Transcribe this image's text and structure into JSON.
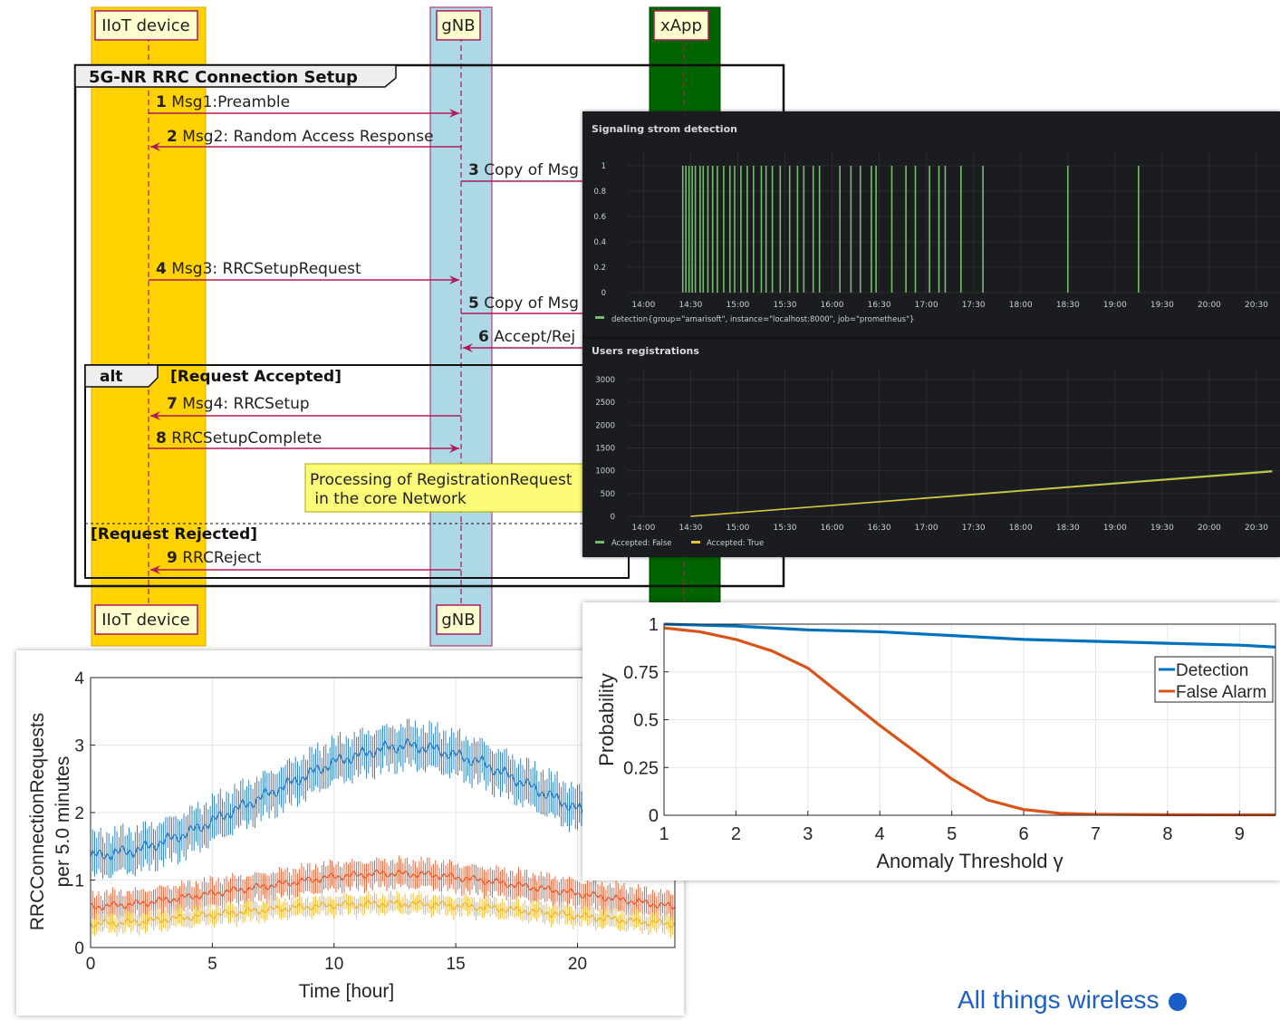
{
  "sequence": {
    "participants": [
      "IIoT device",
      "gNB",
      "xApp"
    ],
    "group_title": "5G-NR RRC Connection Setup",
    "alt_keyword": "alt",
    "alt_condition_1": "[Request Accepted]",
    "alt_condition_2": "[Request Rejected]",
    "note_line1": "Processing of RegistrationRequest",
    "note_line2": " in the core Network",
    "messages": [
      {
        "num": "1",
        "text": "Msg1:Preamble"
      },
      {
        "num": "2",
        "text": "Msg2: Random Access Response"
      },
      {
        "num": "3",
        "text": "Copy of Msg"
      },
      {
        "num": "4",
        "text": "Msg3: RRCSetupRequest"
      },
      {
        "num": "5",
        "text": "Copy of Msg"
      },
      {
        "num": "6",
        "text": "Accept/Rej"
      },
      {
        "num": "7",
        "text": "Msg4: RRCSetup"
      },
      {
        "num": "8",
        "text": "RRCSetupComplete"
      },
      {
        "num": "9",
        "text": "RRCReject"
      }
    ],
    "colors": {
      "iiot": "#ffd200",
      "gnb": "#add8e6",
      "xapp": "#006400",
      "arrow": "#b0185c"
    }
  },
  "dashboard": {
    "panel1_title": "Signaling strom detection",
    "panel1_legend": "detection{group=\"amarisoft\", instance=\"localhost:8000\", job=\"prometheus\"}",
    "panel2_title": "Users registrations",
    "panel2_legend_false": "Accepted: False",
    "panel2_legend_true": "Accepted: True",
    "time_ticks": [
      "14:00",
      "14:30",
      "15:00",
      "15:30",
      "16:00",
      "16:30",
      "17:00",
      "17:30",
      "18:00",
      "18:30",
      "19:00",
      "19:30",
      "20:00",
      "20:30"
    ]
  },
  "chart_data": [
    {
      "type": "scatter",
      "title": "Signaling strom detection",
      "ylim": [
        0,
        1
      ],
      "y_ticks": [
        "0",
        "0.2",
        "0.4",
        "0.6",
        "0.8",
        "1"
      ],
      "series": [
        {
          "name": "detection{group=\"amarisoft\", instance=\"localhost:8000\", job=\"prometheus\"}",
          "color": "#73bf69"
        }
      ],
      "spike_times": [
        "14:25",
        "14:27",
        "14:29",
        "14:31",
        "14:33",
        "14:36",
        "14:38",
        "14:41",
        "14:44",
        "14:47",
        "14:51",
        "14:55",
        "14:58",
        "15:02",
        "15:06",
        "15:10",
        "15:15",
        "15:18",
        "15:22",
        "15:27",
        "15:33",
        "15:38",
        "15:42",
        "15:48",
        "15:52",
        "16:05",
        "16:12",
        "16:18",
        "16:25",
        "16:28",
        "16:38",
        "16:47",
        "16:53",
        "17:02",
        "17:08",
        "17:12",
        "17:22",
        "17:36",
        "18:30",
        "19:15"
      ]
    },
    {
      "type": "line",
      "title": "Users registrations",
      "ylim": [
        0,
        3000
      ],
      "y_ticks": [
        "0",
        "500",
        "1000",
        "1500",
        "2000",
        "2500",
        "3000"
      ],
      "series": [
        {
          "name": "Accepted: False",
          "color": "#73bf69",
          "x": [
            "14:30",
            "20:40"
          ],
          "values": [
            0,
            1000
          ]
        },
        {
          "name": "Accepted: True",
          "color": "#e0c534",
          "x": [
            "14:30",
            "20:40"
          ],
          "values": [
            0,
            980
          ]
        }
      ]
    },
    {
      "type": "line",
      "xlabel": "Time [hour]",
      "ylabel": "RRCConnectionRequests per 5.0 minutes",
      "ylabel_line1": "RRCConnectionRequests",
      "ylabel_line2": "per 5.0 minutes",
      "xlim": [
        0,
        24
      ],
      "ylim": [
        0,
        4
      ],
      "x_ticks": [
        "0",
        "5",
        "10",
        "15",
        "20"
      ],
      "y_ticks": [
        "0",
        "1",
        "2",
        "3",
        "4"
      ],
      "grid": true,
      "series": [
        {
          "color": "#1f77c4",
          "x": [
            0,
            2,
            4,
            6,
            8,
            10,
            12,
            13,
            14,
            16,
            18,
            20,
            22,
            24
          ],
          "values": [
            1.35,
            1.45,
            1.7,
            2.05,
            2.4,
            2.75,
            2.95,
            3.0,
            2.95,
            2.75,
            2.4,
            2.05,
            1.7,
            1.5
          ],
          "err": 0.28
        },
        {
          "color": "#e8562a",
          "x": [
            0,
            2,
            4,
            6,
            8,
            10,
            12,
            14,
            16,
            18,
            20,
            22,
            24
          ],
          "values": [
            0.6,
            0.65,
            0.75,
            0.85,
            0.95,
            1.05,
            1.1,
            1.08,
            1.0,
            0.9,
            0.8,
            0.7,
            0.6
          ],
          "err": 0.18
        },
        {
          "color": "#f0b42a",
          "x": [
            0,
            2,
            4,
            6,
            8,
            10,
            12,
            14,
            16,
            18,
            20,
            22,
            24
          ],
          "values": [
            0.35,
            0.38,
            0.45,
            0.52,
            0.58,
            0.63,
            0.65,
            0.64,
            0.6,
            0.54,
            0.47,
            0.4,
            0.35
          ],
          "err": 0.12
        }
      ]
    },
    {
      "type": "line",
      "xlabel": "Anomaly Threshold γ",
      "ylabel": "Probability",
      "xlim": [
        1,
        9.5
      ],
      "ylim": [
        0,
        1
      ],
      "x_ticks": [
        "1",
        "2",
        "3",
        "4",
        "5",
        "6",
        "7",
        "8",
        "9"
      ],
      "y_ticks": [
        "0",
        "0.25",
        "0.5",
        "0.75",
        "1"
      ],
      "grid": true,
      "legend_position": "top-right",
      "series": [
        {
          "name": "Detection",
          "color": "#0072bd",
          "x": [
            1,
            2,
            3,
            4,
            5,
            6,
            7,
            8,
            9,
            9.5
          ],
          "values": [
            1.0,
            0.99,
            0.97,
            0.96,
            0.94,
            0.92,
            0.91,
            0.9,
            0.89,
            0.88
          ]
        },
        {
          "name": "False Alarm",
          "color": "#d95319",
          "x": [
            1,
            1.5,
            2,
            2.5,
            3,
            3.5,
            4,
            4.5,
            5,
            5.5,
            6,
            6.5,
            7,
            8,
            9,
            9.5
          ],
          "values": [
            0.98,
            0.96,
            0.92,
            0.86,
            0.77,
            0.62,
            0.47,
            0.33,
            0.19,
            0.08,
            0.03,
            0.01,
            0.005,
            0.003,
            0.002,
            0.002
          ]
        }
      ]
    }
  ],
  "footer": {
    "text": "All things wireless"
  }
}
